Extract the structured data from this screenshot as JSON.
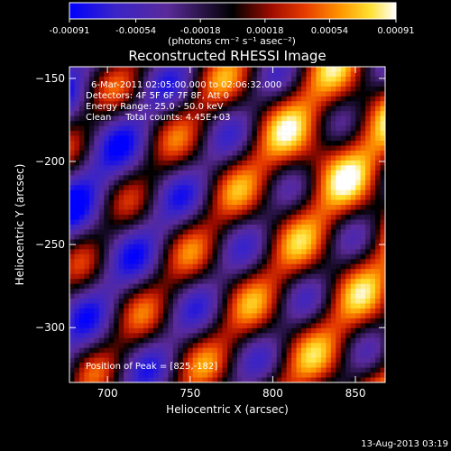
{
  "colorbar": {
    "ticks": [
      "-0.00091",
      "-0.00054",
      "-0.00018",
      "0.00018",
      "0.00054",
      "0.00091"
    ],
    "units": "(photons cm⁻² s⁻¹ asec⁻²)",
    "min": -0.00091,
    "max": 0.00091
  },
  "chart_data": {
    "type": "heatmap",
    "title": "Reconstructed RHESSI Image",
    "xlabel": "Heliocentric X (arcsec)",
    "ylabel": "Heliocentric Y (arcsec)",
    "xlim": [
      677,
      868
    ],
    "ylim": [
      -333,
      -143
    ],
    "xticks": [
      "700",
      "750",
      "800",
      "850"
    ],
    "xtick_values": [
      700,
      750,
      800,
      850
    ],
    "yticks": [
      "-150",
      "-200",
      "-250",
      "-300"
    ],
    "ytick_values": [
      -150,
      -200,
      -250,
      -300
    ],
    "colormap": "red-temperature (blue → purple → black → red → orange → yellow → white)",
    "annotations": {
      "line1": "6-Mar-2011 02:05:00.000 to 02:06:32.000",
      "line2": "Detectors: 4F 5F 6F 7F 8F, Att 0",
      "line3": "Energy Range: 25.0 - 50.0 keV",
      "line4": "Clean     Total counts: 4.45E+03",
      "peak": "Position of Peak = [825,-182]"
    },
    "peak": [
      825,
      -182
    ]
  },
  "footer": {
    "timestamp": "13-Aug-2013 03:19"
  }
}
